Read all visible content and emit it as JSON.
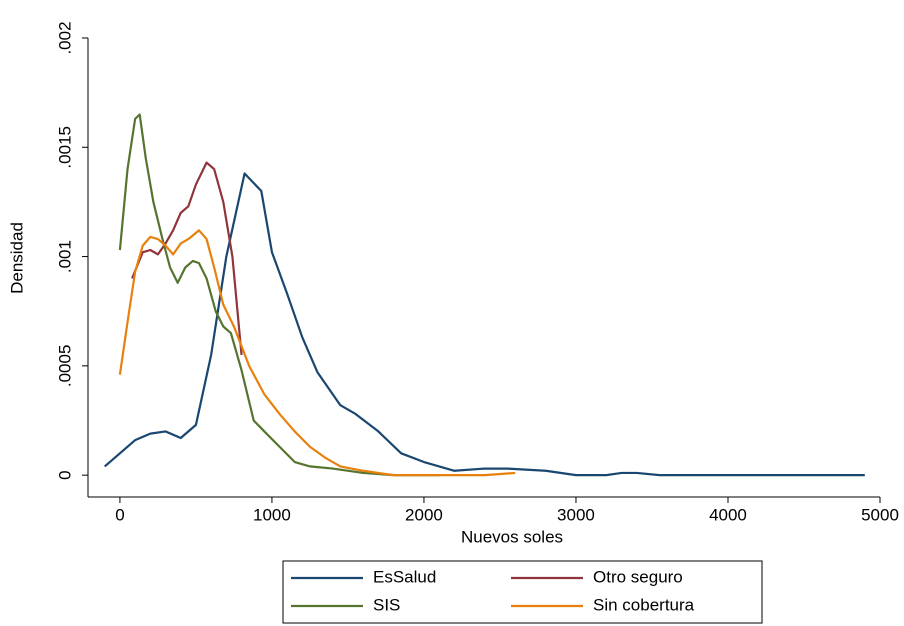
{
  "chart_data": {
    "type": "line",
    "x_label": "Nuevos soles",
    "y_label": "Densidad",
    "xlim": [
      -210,
      5000
    ],
    "xticks": [
      0,
      1000,
      2000,
      3000,
      4000,
      5000
    ],
    "ylim": [
      -0.0001,
      0.002
    ],
    "yticks": [
      {
        "value": 0,
        "label": "0"
      },
      {
        "value": 0.0005,
        "label": ".0005"
      },
      {
        "value": 0.001,
        "label": ".001"
      },
      {
        "value": 0.0015,
        "label": ".0015"
      },
      {
        "value": 0.002,
        "label": ".002"
      }
    ],
    "grid": false,
    "legend": "bottom",
    "series": [
      {
        "name": "EsSalud",
        "color": "#1a476f",
        "x": [
          -100,
          100,
          200,
          300,
          400,
          500,
          600,
          700,
          820,
          930,
          1000,
          1100,
          1200,
          1300,
          1450,
          1550,
          1700,
          1850,
          2000,
          2200,
          2400,
          2550,
          2800,
          3000,
          3200,
          3300,
          3400,
          3550,
          3800,
          4000,
          4200,
          4400,
          4600,
          4900
        ],
        "values": [
          4e-05,
          0.00016,
          0.00019,
          0.0002,
          0.00017,
          0.00023,
          0.00055,
          0.001,
          0.00138,
          0.0013,
          0.00102,
          0.00083,
          0.00063,
          0.00047,
          0.00032,
          0.00028,
          0.0002,
          0.0001,
          6e-05,
          2e-05,
          3e-05,
          3e-05,
          2e-05,
          0,
          0,
          1e-05,
          1e-05,
          0,
          0,
          0,
          0,
          0,
          0,
          0
        ]
      },
      {
        "name": "Otro seguro",
        "color": "#90353b",
        "x": [
          80,
          150,
          200,
          250,
          300,
          350,
          400,
          450,
          500,
          570,
          620,
          680,
          740,
          800
        ],
        "values": [
          0.0009,
          0.00102,
          0.00103,
          0.00101,
          0.00106,
          0.00112,
          0.0012,
          0.00123,
          0.00133,
          0.00143,
          0.0014,
          0.00125,
          0.001,
          0.00055
        ]
      },
      {
        "name": "SIS",
        "color": "#55752f",
        "x": [
          0,
          50,
          100,
          130,
          170,
          220,
          280,
          330,
          380,
          430,
          480,
          520,
          570,
          630,
          680,
          730,
          800,
          880,
          950,
          1050,
          1150,
          1250,
          1400,
          1600,
          1800,
          2000,
          2100
        ],
        "values": [
          0.00103,
          0.0014,
          0.00163,
          0.00165,
          0.00145,
          0.00125,
          0.00108,
          0.00095,
          0.00088,
          0.00095,
          0.00098,
          0.00097,
          0.0009,
          0.00075,
          0.00068,
          0.00065,
          0.00048,
          0.00025,
          0.0002,
          0.00013,
          6e-05,
          4e-05,
          3e-05,
          1e-05,
          0,
          0,
          0
        ]
      },
      {
        "name": "Sin cobertura",
        "color": "#e8800d",
        "x": [
          0,
          50,
          100,
          150,
          200,
          250,
          300,
          350,
          400,
          450,
          520,
          570,
          620,
          680,
          750,
          850,
          950,
          1050,
          1150,
          1250,
          1350,
          1450,
          1600,
          1800,
          2000,
          2200,
          2400,
          2600
        ],
        "values": [
          0.00046,
          0.0007,
          0.00093,
          0.00105,
          0.00109,
          0.00108,
          0.00105,
          0.00101,
          0.00106,
          0.00108,
          0.00112,
          0.00108,
          0.00095,
          0.00078,
          0.00068,
          0.0005,
          0.00037,
          0.00028,
          0.0002,
          0.00013,
          8e-05,
          4e-05,
          2e-05,
          0,
          0,
          0,
          0,
          1e-05
        ]
      }
    ]
  }
}
